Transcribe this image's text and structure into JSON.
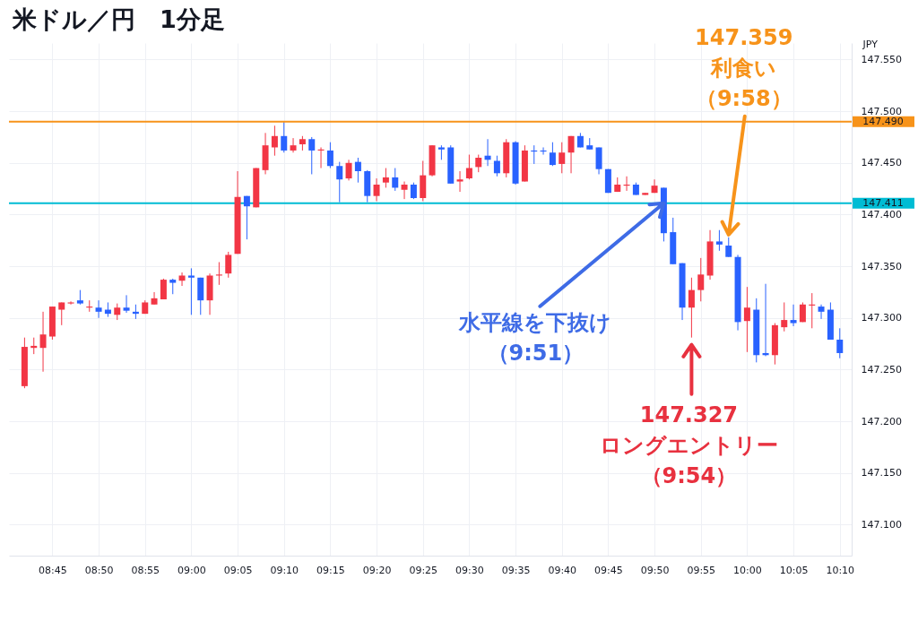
{
  "chart_data": {
    "type": "candlestick",
    "title": "米ドル／円　1分足",
    "ylabel": "JPY",
    "x": [
      8.7,
      8.7167,
      8.7333,
      8.75,
      8.7667,
      8.7833,
      8.8,
      8.8167,
      8.8333,
      8.85,
      8.8667,
      8.8833,
      8.9,
      8.9167,
      8.9333,
      8.95,
      8.9667,
      8.9833,
      9,
      9.0167,
      9.0333,
      9.05,
      9.0667,
      9.0833,
      9.1,
      9.1167,
      9.1333,
      9.15,
      9.1667,
      9.1833,
      9.2,
      9.2167,
      9.2333,
      9.25,
      9.2667,
      9.2833,
      9.3,
      9.3167,
      9.3333,
      9.35,
      9.3667,
      9.3833,
      9.4,
      9.4167,
      9.4333,
      9.45,
      9.4667,
      9.4833,
      9.5,
      9.5167,
      9.5333,
      9.55,
      9.5667,
      9.5833,
      9.6,
      9.6167,
      9.6333,
      9.65,
      9.6667,
      9.6833,
      9.7,
      9.7167,
      9.7333,
      9.75,
      9.7667,
      9.7833,
      9.8,
      9.8167,
      9.8333,
      9.85,
      9.8667,
      9.8833,
      9.9,
      9.9167,
      9.9333,
      9.95,
      9.9667,
      9.9833,
      10,
      10.0167,
      10.0333,
      10.05,
      10.0667,
      10.0833,
      10.1,
      10.1167,
      10.1333,
      10.15,
      10.1667
    ],
    "ohlc": [
      [
        147.234,
        147.281,
        147.232,
        147.272
      ],
      [
        147.271,
        147.281,
        147.265,
        147.273
      ],
      [
        147.271,
        147.306,
        147.248,
        147.284
      ],
      [
        147.282,
        147.311,
        147.279,
        147.311
      ],
      [
        147.308,
        147.315,
        147.293,
        147.315
      ],
      [
        147.314,
        147.316,
        147.313,
        147.315
      ],
      [
        147.317,
        147.327,
        147.313,
        147.314
      ],
      [
        147.31,
        147.317,
        147.306,
        147.311
      ],
      [
        147.31,
        147.317,
        147.3,
        147.306
      ],
      [
        147.308,
        147.315,
        147.301,
        147.304
      ],
      [
        147.303,
        147.314,
        147.298,
        147.31
      ],
      [
        147.31,
        147.322,
        147.305,
        147.307
      ],
      [
        147.306,
        147.313,
        147.299,
        147.304
      ],
      [
        147.304,
        147.317,
        147.304,
        147.315
      ],
      [
        147.313,
        147.325,
        147.313,
        147.319
      ],
      [
        147.318,
        147.338,
        147.318,
        147.337
      ],
      [
        147.337,
        147.338,
        147.323,
        147.334
      ],
      [
        147.336,
        147.344,
        147.331,
        147.341
      ],
      [
        147.341,
        147.348,
        147.303,
        147.339
      ],
      [
        147.339,
        147.339,
        147.303,
        147.317
      ],
      [
        147.317,
        147.343,
        147.303,
        147.341
      ],
      [
        147.341,
        147.354,
        147.332,
        147.342
      ],
      [
        147.343,
        147.364,
        147.339,
        147.361
      ],
      [
        147.362,
        147.442,
        147.362,
        147.417
      ],
      [
        147.418,
        147.418,
        147.376,
        147.408
      ],
      [
        147.407,
        147.445,
        147.407,
        147.445
      ],
      [
        147.443,
        147.479,
        147.439,
        147.467
      ],
      [
        147.465,
        147.486,
        147.457,
        147.476
      ],
      [
        147.476,
        147.49,
        147.46,
        147.462
      ],
      [
        147.462,
        147.474,
        147.46,
        147.467
      ],
      [
        147.468,
        147.476,
        147.462,
        147.473
      ],
      [
        147.473,
        147.475,
        147.439,
        147.462
      ],
      [
        147.462,
        147.465,
        147.445,
        147.463
      ],
      [
        147.462,
        147.47,
        147.445,
        147.447
      ],
      [
        147.447,
        147.451,
        147.412,
        147.434
      ],
      [
        147.435,
        147.453,
        147.433,
        147.45
      ],
      [
        147.451,
        147.455,
        147.431,
        147.442
      ],
      [
        147.442,
        147.443,
        147.412,
        147.418
      ],
      [
        147.418,
        147.435,
        147.413,
        147.429
      ],
      [
        147.431,
        147.445,
        147.426,
        147.436
      ],
      [
        147.436,
        147.445,
        147.423,
        147.426
      ],
      [
        147.424,
        147.432,
        147.415,
        147.429
      ],
      [
        147.429,
        147.431,
        147.415,
        147.416
      ],
      [
        147.416,
        147.452,
        147.413,
        147.438
      ],
      [
        147.438,
        147.467,
        147.437,
        147.467
      ],
      [
        147.465,
        147.467,
        147.453,
        147.463
      ],
      [
        147.465,
        147.467,
        147.43,
        147.43
      ],
      [
        147.432,
        147.442,
        147.422,
        147.434
      ],
      [
        147.435,
        147.458,
        147.434,
        147.445
      ],
      [
        147.446,
        147.458,
        147.441,
        147.455
      ],
      [
        147.457,
        147.473,
        147.447,
        147.453
      ],
      [
        147.452,
        147.457,
        147.437,
        147.44
      ],
      [
        147.44,
        147.473,
        147.436,
        147.47
      ],
      [
        147.47,
        147.471,
        147.429,
        147.43
      ],
      [
        147.432,
        147.467,
        147.432,
        147.462
      ],
      [
        147.462,
        147.467,
        147.449,
        147.461
      ],
      [
        147.462,
        147.465,
        147.458,
        147.461
      ],
      [
        147.46,
        147.47,
        147.447,
        147.448
      ],
      [
        147.449,
        147.47,
        147.44,
        147.46
      ],
      [
        147.46,
        147.476,
        147.44,
        147.476
      ],
      [
        147.476,
        147.479,
        147.465,
        147.465
      ],
      [
        147.467,
        147.474,
        147.463,
        147.463
      ],
      [
        147.465,
        147.465,
        147.439,
        147.444
      ],
      [
        147.444,
        147.444,
        147.421,
        147.421
      ],
      [
        147.422,
        147.436,
        147.422,
        147.429
      ],
      [
        147.428,
        147.437,
        147.423,
        147.429
      ],
      [
        147.429,
        147.431,
        147.419,
        147.419
      ],
      [
        147.419,
        147.421,
        147.419,
        147.421
      ],
      [
        147.421,
        147.434,
        147.421,
        147.428
      ],
      [
        147.426,
        147.426,
        147.374,
        147.382
      ],
      [
        147.383,
        147.397,
        147.352,
        147.352
      ],
      [
        147.353,
        147.353,
        147.298,
        147.31
      ],
      [
        147.31,
        147.339,
        147.281,
        147.327
      ],
      [
        147.327,
        147.358,
        147.316,
        147.342
      ],
      [
        147.341,
        147.385,
        147.337,
        147.374
      ],
      [
        147.374,
        147.385,
        147.365,
        147.371
      ],
      [
        147.37,
        147.378,
        147.359,
        147.359
      ],
      [
        147.359,
        147.361,
        147.288,
        147.296
      ],
      [
        147.297,
        147.33,
        147.267,
        147.31
      ],
      [
        147.308,
        147.319,
        147.257,
        147.264
      ],
      [
        147.266,
        147.333,
        147.263,
        147.264
      ],
      [
        147.264,
        147.295,
        147.255,
        147.293
      ],
      [
        147.291,
        147.315,
        147.287,
        147.298
      ],
      [
        147.298,
        147.313,
        147.292,
        147.295
      ],
      [
        147.296,
        147.315,
        147.296,
        147.313
      ],
      [
        147.312,
        147.324,
        147.29,
        147.313
      ],
      [
        147.311,
        147.313,
        147.299,
        147.306
      ],
      [
        147.308,
        147.315,
        147.279,
        147.279
      ],
      [
        147.279,
        147.29,
        147.261,
        147.266
      ]
    ],
    "colors": [
      "#f23645",
      "#f23645",
      "#f23645",
      "#f23645",
      "#f23645",
      "#f23645",
      "#2962ff",
      "#f23645",
      "#2962ff",
      "#2962ff",
      "#f23645",
      "#2962ff",
      "#2962ff",
      "#f23645",
      "#f23645",
      "#f23645",
      "#2962ff",
      "#f23645",
      "#2962ff",
      "#2962ff",
      "#f23645",
      "#f23645",
      "#f23645",
      "#f23645",
      "#2962ff",
      "#f23645",
      "#f23645",
      "#f23645",
      "#2962ff",
      "#f23645",
      "#f23645",
      "#2962ff",
      "#f23645",
      "#2962ff",
      "#2962ff",
      "#f23645",
      "#2962ff",
      "#2962ff",
      "#f23645",
      "#f23645",
      "#2962ff",
      "#f23645",
      "#2962ff",
      "#f23645",
      "#f23645",
      "#2962ff",
      "#2962ff",
      "#f23645",
      "#f23645",
      "#f23645",
      "#2962ff",
      "#2962ff",
      "#f23645",
      "#2962ff",
      "#f23645",
      "#2962ff",
      "#2962ff",
      "#2962ff",
      "#f23645",
      "#f23645",
      "#2962ff",
      "#2962ff",
      "#2962ff",
      "#2962ff",
      "#f23645",
      "#f23645",
      "#2962ff",
      "#f23645",
      "#f23645",
      "#2962ff",
      "#2962ff",
      "#2962ff",
      "#f23645",
      "#f23645",
      "#f23645",
      "#2962ff",
      "#2962ff",
      "#2962ff",
      "#f23645",
      "#2962ff",
      "#2962ff",
      "#f23645",
      "#f23645",
      "#2962ff",
      "#f23645",
      "#f23645",
      "#2962ff",
      "#2962ff",
      "#2962ff"
    ],
    "xlim": [
      8.68,
      10.18
    ],
    "ylim": [
      147.07,
      147.566
    ],
    "xticks": [
      {
        "value": 8.75,
        "label": "08:45"
      },
      {
        "value": 8.8333,
        "label": "08:50"
      },
      {
        "value": 8.9167,
        "label": "08:55"
      },
      {
        "value": 9,
        "label": "09:00"
      },
      {
        "value": 9.0833,
        "label": "09:05"
      },
      {
        "value": 9.1667,
        "label": "09:10"
      },
      {
        "value": 9.25,
        "label": "09:15"
      },
      {
        "value": 9.3333,
        "label": "09:20"
      },
      {
        "value": 9.4167,
        "label": "09:25"
      },
      {
        "value": 9.5,
        "label": "09:30"
      },
      {
        "value": 9.5833,
        "label": "09:35"
      },
      {
        "value": 9.6667,
        "label": "09:40"
      },
      {
        "value": 9.75,
        "label": "09:45"
      },
      {
        "value": 9.8333,
        "label": "09:50"
      },
      {
        "value": 9.9167,
        "label": "09:55"
      },
      {
        "value": 10,
        "label": "10:00"
      },
      {
        "value": 10.0833,
        "label": "10:05"
      },
      {
        "value": 10.1667,
        "label": "10:10"
      }
    ],
    "yticks": [
      {
        "value": 147.1,
        "label": "147.100"
      },
      {
        "value": 147.15,
        "label": "147.150"
      },
      {
        "value": 147.2,
        "label": "147.200"
      },
      {
        "value": 147.25,
        "label": "147.250"
      },
      {
        "value": 147.3,
        "label": "147.300"
      },
      {
        "value": 147.35,
        "label": "147.350"
      },
      {
        "value": 147.4,
        "label": "147.400"
      },
      {
        "value": 147.45,
        "label": "147.450"
      },
      {
        "value": 147.5,
        "label": "147.500"
      },
      {
        "value": 147.55,
        "label": "147.550"
      }
    ],
    "grid": true,
    "ref_lines": [
      {
        "axis": "y",
        "value": 147.49,
        "label": "147.490",
        "color": "#f7931a"
      },
      {
        "axis": "y",
        "value": 147.411,
        "label": "147.411",
        "color": "#00bcd4"
      }
    ],
    "annotations": [
      {
        "text": "147.359利食い（9:58）",
        "x": 9.9667,
        "y": 147.378
      },
      {
        "text": "水平線を下抜け（9:51）",
        "x": 9.85,
        "y": 147.411
      },
      {
        "text": "147.327ロングエントリー（9:54）",
        "x": 9.9,
        "y": 147.281
      }
    ]
  }
}
